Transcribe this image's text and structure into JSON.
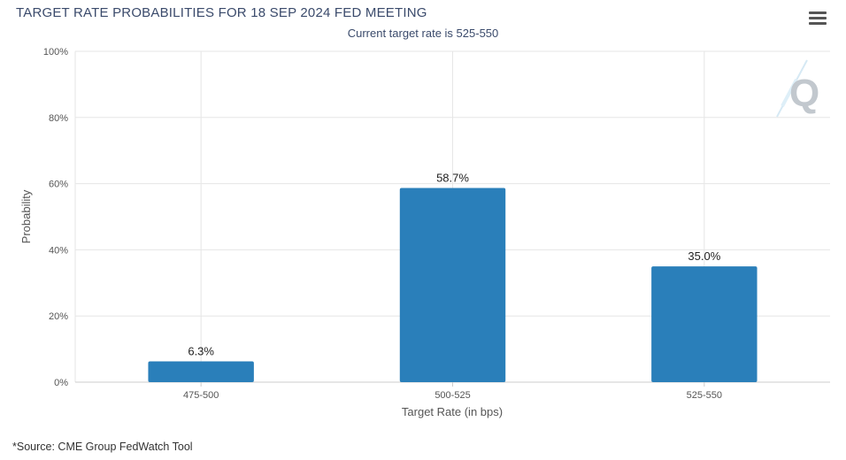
{
  "header": {
    "title": "TARGET RATE PROBABILITIES FOR 18 SEP 2024 FED MEETING",
    "subtitle": "Current target rate is 525-550"
  },
  "footer": {
    "source": "*Source: CME Group FedWatch Tool"
  },
  "watermark": {
    "icon": "q-logo-icon",
    "letter": "Q"
  },
  "menu": {
    "icon": "hamburger-menu-icon"
  },
  "colors": {
    "bar": "#2a7fba",
    "grid": "#e6e6e6",
    "axis": "#cccccc",
    "title": "#3a4a6b"
  },
  "chart_data": {
    "type": "bar",
    "title": "TARGET RATE PROBABILITIES FOR 18 SEP 2024 FED MEETING",
    "subtitle": "Current target rate is 525-550",
    "xlabel": "Target Rate (in bps)",
    "ylabel": "Probability",
    "categories": [
      "475-500",
      "500-525",
      "525-550"
    ],
    "values": [
      6.3,
      58.7,
      35.0
    ],
    "data_labels": [
      "6.3%",
      "58.7%",
      "35.0%"
    ],
    "ylim": [
      0,
      100
    ],
    "yticks": [
      0,
      20,
      40,
      60,
      80,
      100
    ],
    "ytick_labels": [
      "0%",
      "20%",
      "40%",
      "60%",
      "80%",
      "100%"
    ],
    "grid": true,
    "legend": "none"
  }
}
